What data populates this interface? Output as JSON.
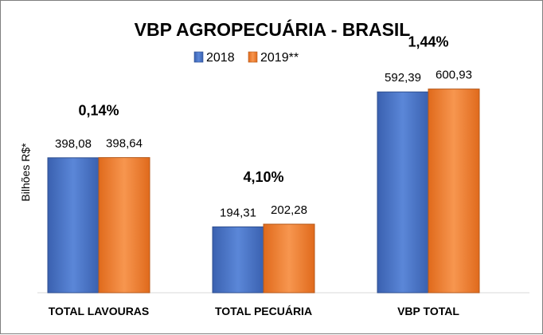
{
  "chart_data": {
    "type": "bar",
    "title": "VBP AGROPECUÁRIA - BRASIL",
    "ylabel": "Bilhões R$*",
    "xlabel": "",
    "categories": [
      "TOTAL LAVOURAS",
      "TOTAL PECUÁRIA",
      "VBP TOTAL"
    ],
    "series": [
      {
        "name": "2018",
        "values": [
          398.08,
          194.31,
          592.39
        ],
        "labels": [
          "398,08",
          "194,31",
          "592,39"
        ],
        "color": "#4472C4"
      },
      {
        "name": "2019**",
        "values": [
          398.64,
          202.28,
          600.93
        ],
        "labels": [
          "398,64",
          "202,28",
          "600,93"
        ],
        "color": "#ED7D31"
      }
    ],
    "annotations": [
      "0,14%",
      "4,10%",
      "1,44%"
    ],
    "ylim": [
      0,
      720
    ],
    "grid": false,
    "legend": "top-center"
  }
}
